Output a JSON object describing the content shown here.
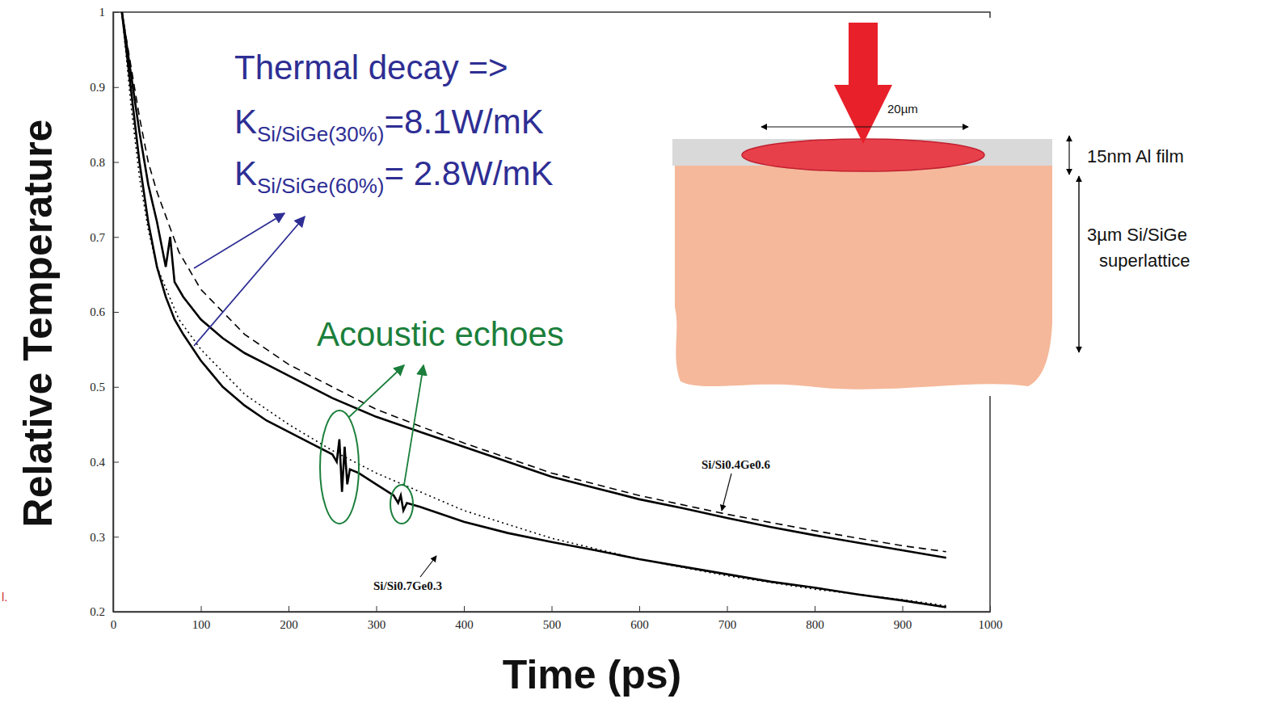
{
  "chart_data": {
    "type": "line",
    "xlabel": "Time (ps)",
    "ylabel": "Relative Temperature",
    "xlim": [
      0,
      1000
    ],
    "xticks": [
      0,
      100,
      200,
      300,
      400,
      500,
      600,
      700,
      800,
      900,
      1000
    ],
    "ylim": [
      0.2,
      1
    ],
    "yticks": [
      0.2,
      0.3,
      0.4,
      0.5,
      0.6,
      0.7,
      0.8,
      0.9,
      1
    ],
    "grid": false,
    "series": [
      {
        "name": "Si/Si0.4Ge0.6",
        "color": "#000000",
        "line_style": "solid",
        "x": [
          10,
          20,
          30,
          40,
          50,
          55,
          60,
          65,
          70,
          80,
          100,
          125,
          150,
          175,
          200,
          250,
          300,
          350,
          400,
          450,
          500,
          550,
          600,
          650,
          700,
          750,
          800,
          850,
          900,
          950
        ],
        "values": [
          1.0,
          0.92,
          0.84,
          0.77,
          0.72,
          0.69,
          0.66,
          0.7,
          0.64,
          0.62,
          0.59,
          0.565,
          0.545,
          0.53,
          0.515,
          0.485,
          0.46,
          0.44,
          0.42,
          0.4,
          0.38,
          0.365,
          0.35,
          0.338,
          0.325,
          0.313,
          0.302,
          0.292,
          0.282,
          0.272
        ]
      },
      {
        "color": "#000000",
        "line_style": "dashed",
        "x": [
          10,
          20,
          30,
          40,
          50,
          75,
          100,
          150,
          200,
          250,
          300,
          400,
          500,
          600,
          700,
          800,
          900,
          950
        ],
        "values": [
          1.0,
          0.93,
          0.86,
          0.8,
          0.76,
          0.68,
          0.63,
          0.57,
          0.53,
          0.5,
          0.47,
          0.425,
          0.385,
          0.355,
          0.33,
          0.308,
          0.288,
          0.28
        ]
      },
      {
        "name": "Si/Si0.7Ge0.3",
        "color": "#000000",
        "line_style": "solid",
        "x": [
          10,
          20,
          30,
          40,
          50,
          60,
          70,
          80,
          100,
          125,
          150,
          175,
          200,
          225,
          250,
          255,
          258,
          261,
          264,
          267,
          270,
          280,
          300,
          320,
          325,
          328,
          331,
          335,
          350,
          400,
          450,
          500,
          550,
          600,
          650,
          700,
          750,
          800,
          850,
          900,
          950
        ],
        "values": [
          1.0,
          0.9,
          0.8,
          0.72,
          0.66,
          0.62,
          0.59,
          0.57,
          0.535,
          0.5,
          0.475,
          0.455,
          0.44,
          0.425,
          0.41,
          0.4,
          0.43,
          0.36,
          0.42,
          0.37,
          0.39,
          0.385,
          0.37,
          0.355,
          0.345,
          0.355,
          0.335,
          0.345,
          0.34,
          0.32,
          0.305,
          0.293,
          0.282,
          0.27,
          0.26,
          0.25,
          0.24,
          0.232,
          0.223,
          0.215,
          0.206
        ]
      },
      {
        "color": "#000000",
        "line_style": "dotted",
        "x": [
          10,
          20,
          30,
          40,
          50,
          75,
          100,
          150,
          200,
          250,
          300,
          400,
          500,
          600,
          700,
          800,
          900,
          950
        ],
        "values": [
          1.0,
          0.88,
          0.78,
          0.71,
          0.66,
          0.59,
          0.55,
          0.49,
          0.45,
          0.415,
          0.385,
          0.335,
          0.298,
          0.27,
          0.248,
          0.23,
          0.216,
          0.208
        ]
      }
    ],
    "annotations": {
      "thermal_decay": "Thermal decay =>",
      "conductivities": [
        {
          "symbol": "K",
          "subscript": "Si/SiGe(30%)",
          "text": "=8.1W/mK"
        },
        {
          "symbol": "K",
          "subscript": "Si/SiGe(60%)",
          "text": "= 2.8W/mK"
        }
      ],
      "acoustic_echoes": "Acoustic echoes",
      "fragment": "l."
    },
    "diagram": {
      "spot_width": "20µm",
      "film": "15nm Al film",
      "layer": "3µm Si/SiGe superlattice"
    }
  }
}
